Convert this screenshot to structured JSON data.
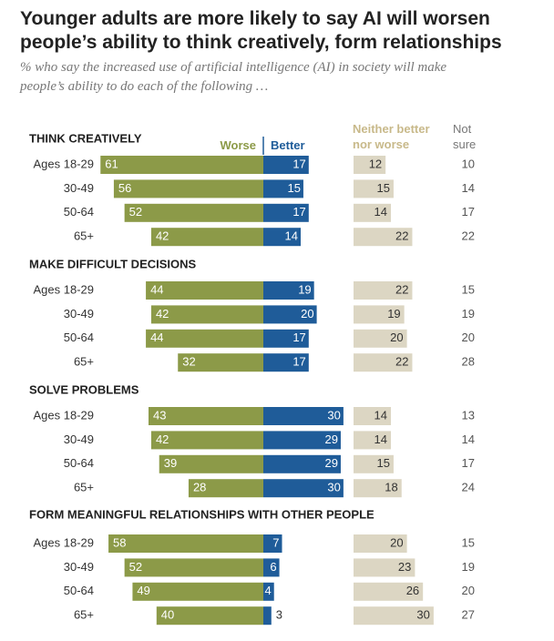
{
  "chart_data": {
    "type": "diverging_bar",
    "title": "Younger adults are more likely to say AI will worsen people’s ability to think creatively, form relationships",
    "subtitle": "% who say the increased use of artificial intelligence (AI) in society will make people’s ability to do each of the following …",
    "series": [
      {
        "name": "Worse",
        "color": "#8c9a48"
      },
      {
        "name": "Better",
        "color": "#1f5c99"
      },
      {
        "name": "Neither better nor worse",
        "color": "#dcd6c3"
      },
      {
        "name": "Not sure",
        "color": "#555555"
      }
    ],
    "groups": [
      {
        "title": "THINK CREATIVELY",
        "categories": [
          "Ages 18-29",
          "30-49",
          "50-64",
          "65+"
        ],
        "series": [
          {
            "values": [
              61,
              56,
              52,
              42
            ]
          },
          {
            "values": [
              17,
              15,
              17,
              14
            ]
          },
          {
            "values": [
              12,
              15,
              14,
              22
            ]
          },
          {
            "values": [
              10,
              14,
              17,
              22
            ]
          }
        ]
      },
      {
        "title": "MAKE DIFFICULT DECISIONS",
        "categories": [
          "Ages 18-29",
          "30-49",
          "50-64",
          "65+"
        ],
        "series": [
          {
            "values": [
              44,
              42,
              44,
              32
            ]
          },
          {
            "values": [
              19,
              20,
              17,
              17
            ]
          },
          {
            "values": [
              22,
              19,
              20,
              22
            ]
          },
          {
            "values": [
              15,
              19,
              20,
              28
            ]
          }
        ]
      },
      {
        "title": "SOLVE PROBLEMS",
        "categories": [
          "Ages 18-29",
          "30-49",
          "50-64",
          "65+"
        ],
        "series": [
          {
            "values": [
              43,
              42,
              39,
              28
            ]
          },
          {
            "values": [
              30,
              29,
              29,
              30
            ]
          },
          {
            "values": [
              14,
              14,
              15,
              18
            ]
          },
          {
            "values": [
              13,
              14,
              17,
              24
            ]
          }
        ]
      },
      {
        "title": "FORM MEANINGFUL RELATIONSHIPS WITH OTHER PEOPLE",
        "categories": [
          "Ages 18-29",
          "30-49",
          "50-64",
          "65+"
        ],
        "series": [
          {
            "values": [
              58,
              52,
              49,
              40
            ]
          },
          {
            "values": [
              7,
              6,
              4,
              3
            ]
          },
          {
            "values": [
              20,
              23,
              26,
              30
            ]
          },
          {
            "values": [
              15,
              19,
              20,
              27
            ]
          }
        ]
      }
    ]
  }
}
